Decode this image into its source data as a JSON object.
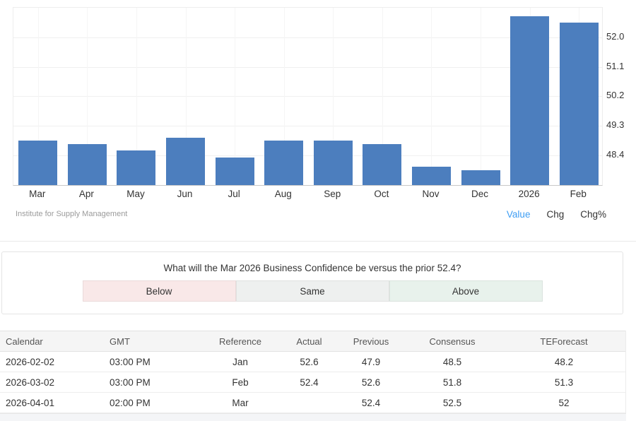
{
  "chart": {
    "source": "Institute for Supply Management",
    "bar_color": "#4c7ebe",
    "active_link_color": "#3d9df3",
    "ytick_labels": [
      "52.0",
      "51.1",
      "50.2",
      "49.3",
      "48.4"
    ],
    "view_options": [
      {
        "label": "Value",
        "active": true
      },
      {
        "label": "Chg",
        "active": false
      },
      {
        "label": "Chg%",
        "active": false
      }
    ]
  },
  "chart_data": {
    "type": "bar",
    "title": "Business Confidence",
    "categories": [
      "Mar",
      "Apr",
      "May",
      "Jun",
      "Jul",
      "Aug",
      "Sep",
      "Oct",
      "Nov",
      "Dec",
      "2026",
      "Feb"
    ],
    "values": [
      48.8,
      48.7,
      48.5,
      48.9,
      48.3,
      48.8,
      48.8,
      48.7,
      48.0,
      47.9,
      52.6,
      52.4
    ],
    "xlabel": "",
    "ylabel": "",
    "ylim": [
      47.45,
      52.9
    ],
    "yticks": [
      52.0,
      51.1,
      50.2,
      49.3,
      48.4
    ],
    "grid": true,
    "source": "Institute for Supply Management"
  },
  "poll": {
    "question": "What will the Mar 2026 Business Confidence be versus the prior 52.4?",
    "options": [
      {
        "label": "Below",
        "color": "#f9e8e8"
      },
      {
        "label": "Same",
        "color": "#eef0ef"
      },
      {
        "label": "Above",
        "color": "#e8f2ec"
      }
    ]
  },
  "calendar_table": {
    "headers": [
      "Calendar",
      "GMT",
      "Reference",
      "Actual",
      "Previous",
      "Consensus",
      "TEForecast"
    ],
    "rows": [
      [
        "2026-02-02",
        "03:00 PM",
        "Jan",
        "52.6",
        "47.9",
        "48.5",
        "48.2"
      ],
      [
        "2026-03-02",
        "03:00 PM",
        "Feb",
        "52.4",
        "52.6",
        "51.8",
        "51.3"
      ],
      [
        "2026-04-01",
        "02:00 PM",
        "Mar",
        "",
        "52.4",
        "52.5",
        "52"
      ]
    ]
  }
}
